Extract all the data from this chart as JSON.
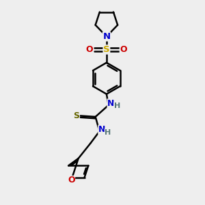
{
  "background_color": "#eeeeee",
  "atom_colors": {
    "C": "#000000",
    "N": "#0000cc",
    "O": "#cc0000",
    "S_sulfonyl": "#ccaa00",
    "S_thio": "#666600",
    "H": "#557777"
  },
  "bond_color": "#000000",
  "figsize": [
    3.0,
    3.0
  ],
  "dpi": 100,
  "xlim": [
    0,
    10
  ],
  "ylim": [
    0,
    10
  ]
}
